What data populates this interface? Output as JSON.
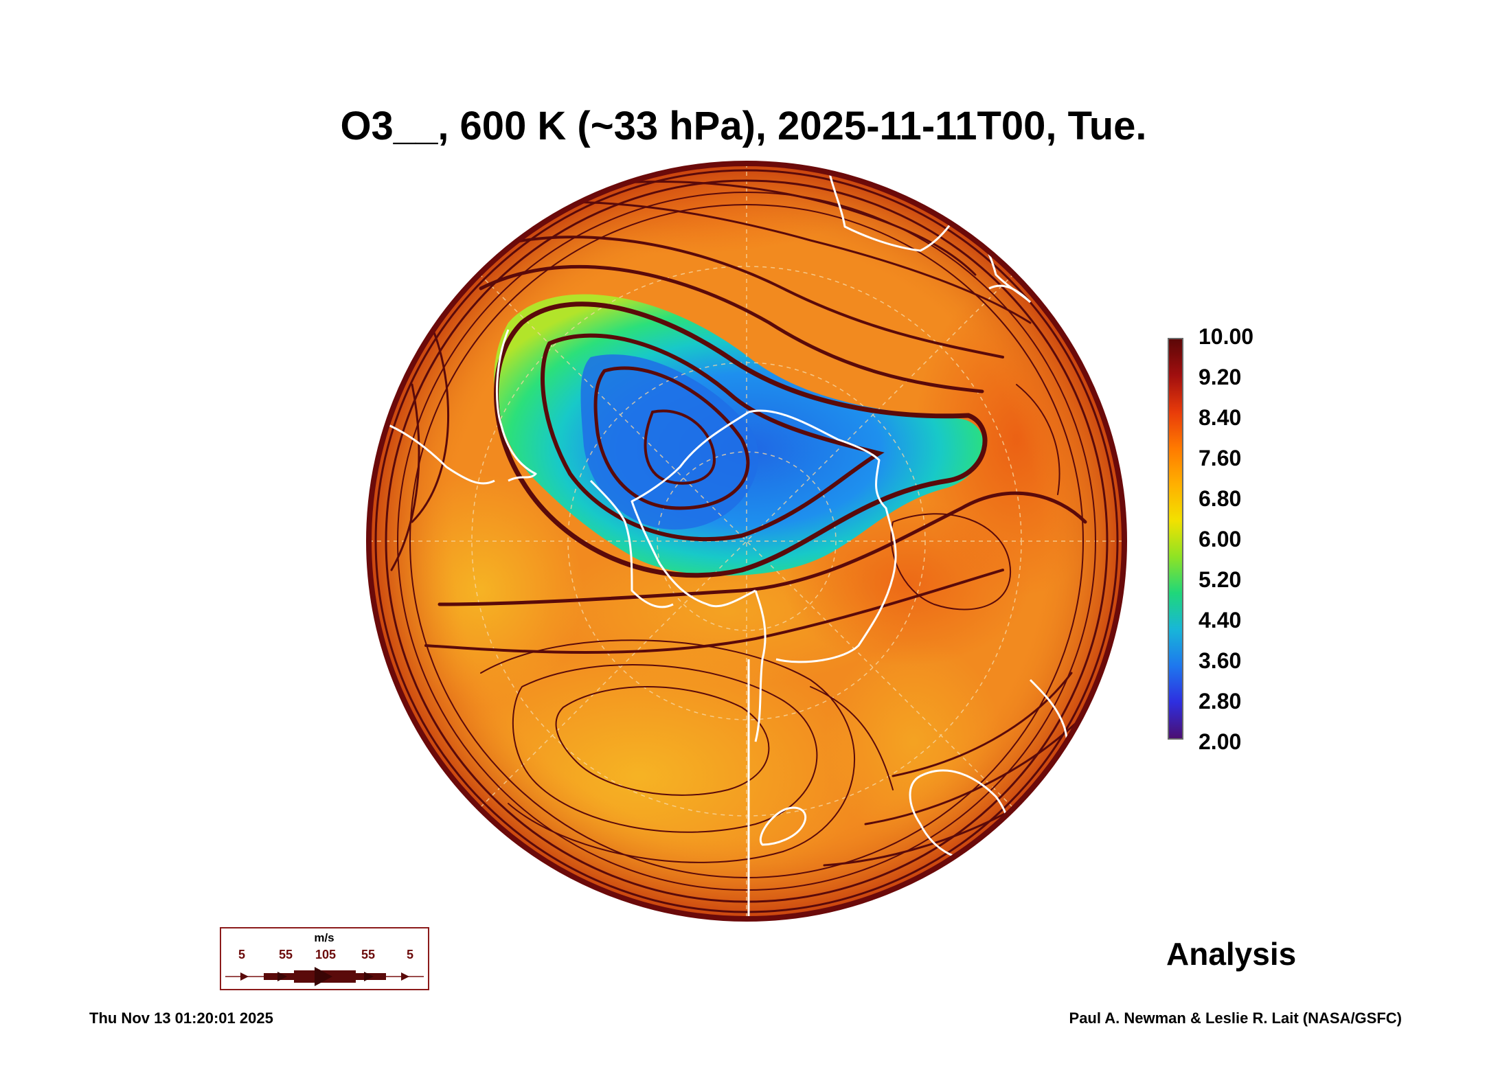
{
  "title": "O3__, 600 K (~33 hPa), 2025-11-11T00, Tue.",
  "colorbar": {
    "labels": [
      "10.00",
      "9.20",
      "8.40",
      "7.60",
      "6.80",
      "6.00",
      "5.20",
      "4.40",
      "3.60",
      "2.80",
      "2.00"
    ],
    "colors": [
      "#4b0f72",
      "#2e2fe0",
      "#1e78ee",
      "#18b6d8",
      "#1fd77a",
      "#8fe324",
      "#f2e100",
      "#ffb000",
      "#ff7a00",
      "#e83b0a",
      "#a10f0f",
      "#5c0707"
    ]
  },
  "legend": {
    "unit": "m/s",
    "speeds": [
      "5",
      "55",
      "105",
      "55",
      "5"
    ]
  },
  "analysis_label": "Analysis",
  "timestamp": "Thu Nov 13 01:20:01 2025",
  "credit": "Paul A. Newman & Leslie R. Lait (NASA/GSFC)",
  "map": {
    "projection": "polar stereographic",
    "colors": {
      "background_field": "#f28a1f",
      "streamline": "#5a0a0a",
      "coastline": "#ffffff",
      "grid": "#f6d7a3"
    }
  }
}
